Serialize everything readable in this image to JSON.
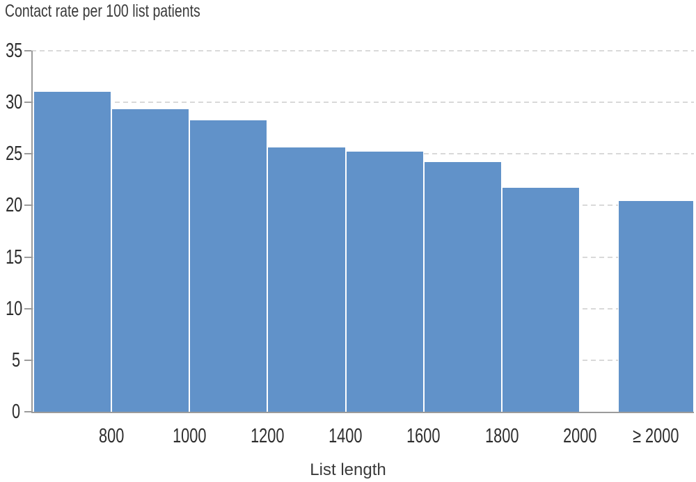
{
  "chart_data": {
    "type": "bar",
    "title": "Contact rate per 100 list patients",
    "xlabel": "List length",
    "ylabel": "",
    "ylim": [
      0,
      35
    ],
    "yticks": [
      0,
      5,
      10,
      15,
      20,
      25,
      30,
      35
    ],
    "grid": "horizontal dashed gridlines at each y tick, drawn behind bars",
    "legend": "none",
    "colors": {
      "bar_fill": "#6192c9",
      "bar_edge": "#ffffff",
      "axis": "#9b9b9b",
      "gridline": "#d9d9d9",
      "text": "#2d2d2d"
    },
    "x_tick_labels": [
      "800",
      "1000",
      "1200",
      "1400",
      "1600",
      "1800",
      "2000",
      "≥ 2000"
    ],
    "values": [
      31.1,
      29.4,
      28.3,
      25.7,
      25.3,
      24.3,
      21.8,
      20.5
    ],
    "bars": [
      {
        "label": "800",
        "value": 31.1,
        "label_position": "right-edge",
        "detached": false
      },
      {
        "label": "1000",
        "value": 29.4,
        "label_position": "right-edge",
        "detached": false
      },
      {
        "label": "1200",
        "value": 28.3,
        "label_position": "right-edge",
        "detached": false
      },
      {
        "label": "1400",
        "value": 25.7,
        "label_position": "right-edge",
        "detached": false
      },
      {
        "label": "1600",
        "value": 25.3,
        "label_position": "right-edge",
        "detached": false
      },
      {
        "label": "1800",
        "value": 24.3,
        "label_position": "right-edge",
        "detached": false
      },
      {
        "label": "2000",
        "value": 21.8,
        "label_position": "right-edge",
        "detached": false
      },
      {
        "label": "≥ 2000",
        "value": 20.5,
        "label_position": "center",
        "detached": true
      }
    ]
  }
}
